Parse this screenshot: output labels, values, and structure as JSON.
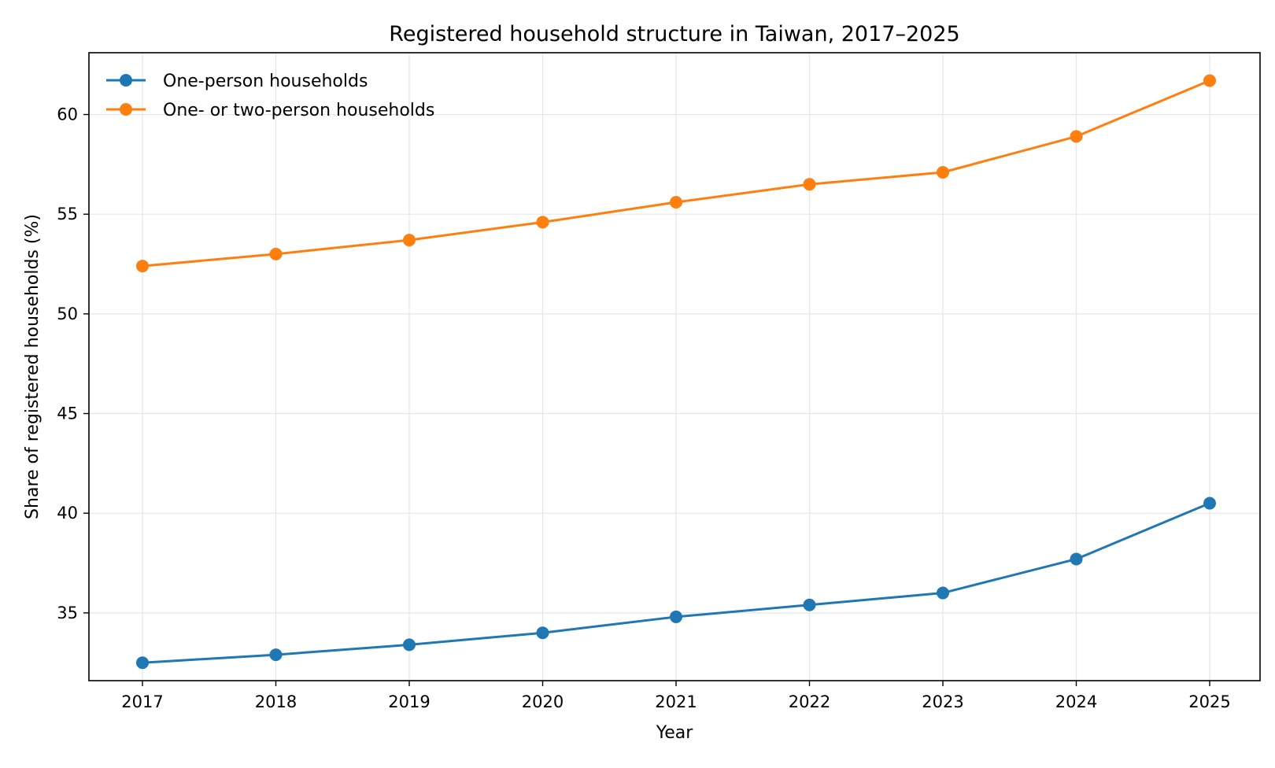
{
  "chart_data": {
    "type": "line",
    "title": "Registered household structure in Taiwan, 2017–2025",
    "xlabel": "Year",
    "ylabel": "Share of registered households (%)",
    "categories": [
      "2017",
      "2018",
      "2019",
      "2020",
      "2021",
      "2022",
      "2023",
      "2024",
      "2025"
    ],
    "yticks": [
      "35",
      "40",
      "45",
      "50",
      "55",
      "60"
    ],
    "ylim": [
      31.6,
      63.1
    ],
    "grid": true,
    "legend_position": "top-left",
    "series": [
      {
        "name": "One-person households",
        "color": "#1f77b4",
        "values": [
          32.5,
          32.9,
          33.4,
          34.0,
          34.8,
          35.4,
          36.0,
          37.7,
          40.5
        ]
      },
      {
        "name": "One- or two-person households",
        "color": "#ff7f0e",
        "values": [
          52.4,
          53.0,
          53.7,
          54.6,
          55.6,
          56.5,
          57.1,
          58.9,
          61.7
        ]
      }
    ]
  }
}
